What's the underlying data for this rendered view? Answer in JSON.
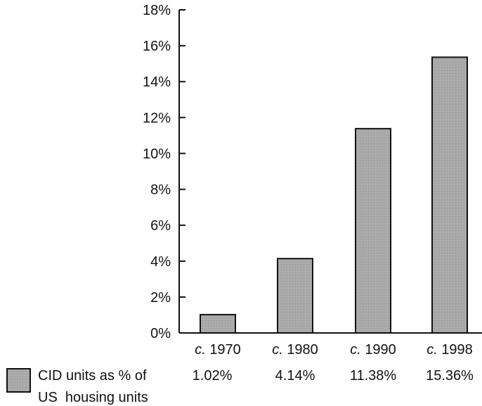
{
  "chart_data": {
    "type": "bar",
    "title": "",
    "xlabel": "",
    "ylabel": "",
    "ylim": [
      0,
      18
    ],
    "yticks": [
      "0%",
      "2%",
      "4%",
      "6%",
      "8%",
      "10%",
      "12%",
      "14%",
      "16%",
      "18%"
    ],
    "ytick_values": [
      0,
      2,
      4,
      6,
      8,
      10,
      12,
      14,
      16,
      18
    ],
    "category_prefix": "c.",
    "categories": [
      "1970",
      "1980",
      "1990",
      "1998"
    ],
    "series": [
      {
        "name": "CID units as % of US housing units",
        "name_lines": [
          "CID units as % of",
          "US  housing units"
        ],
        "values": [
          1.02,
          4.14,
          11.38,
          15.36
        ],
        "value_labels": [
          "1.02%",
          "4.14%",
          "11.38%",
          "15.36%"
        ]
      }
    ],
    "bar_color": "#a9a9a9",
    "bar_edge_color": "#111111",
    "grid": false,
    "legend_position": "bottom-left"
  }
}
